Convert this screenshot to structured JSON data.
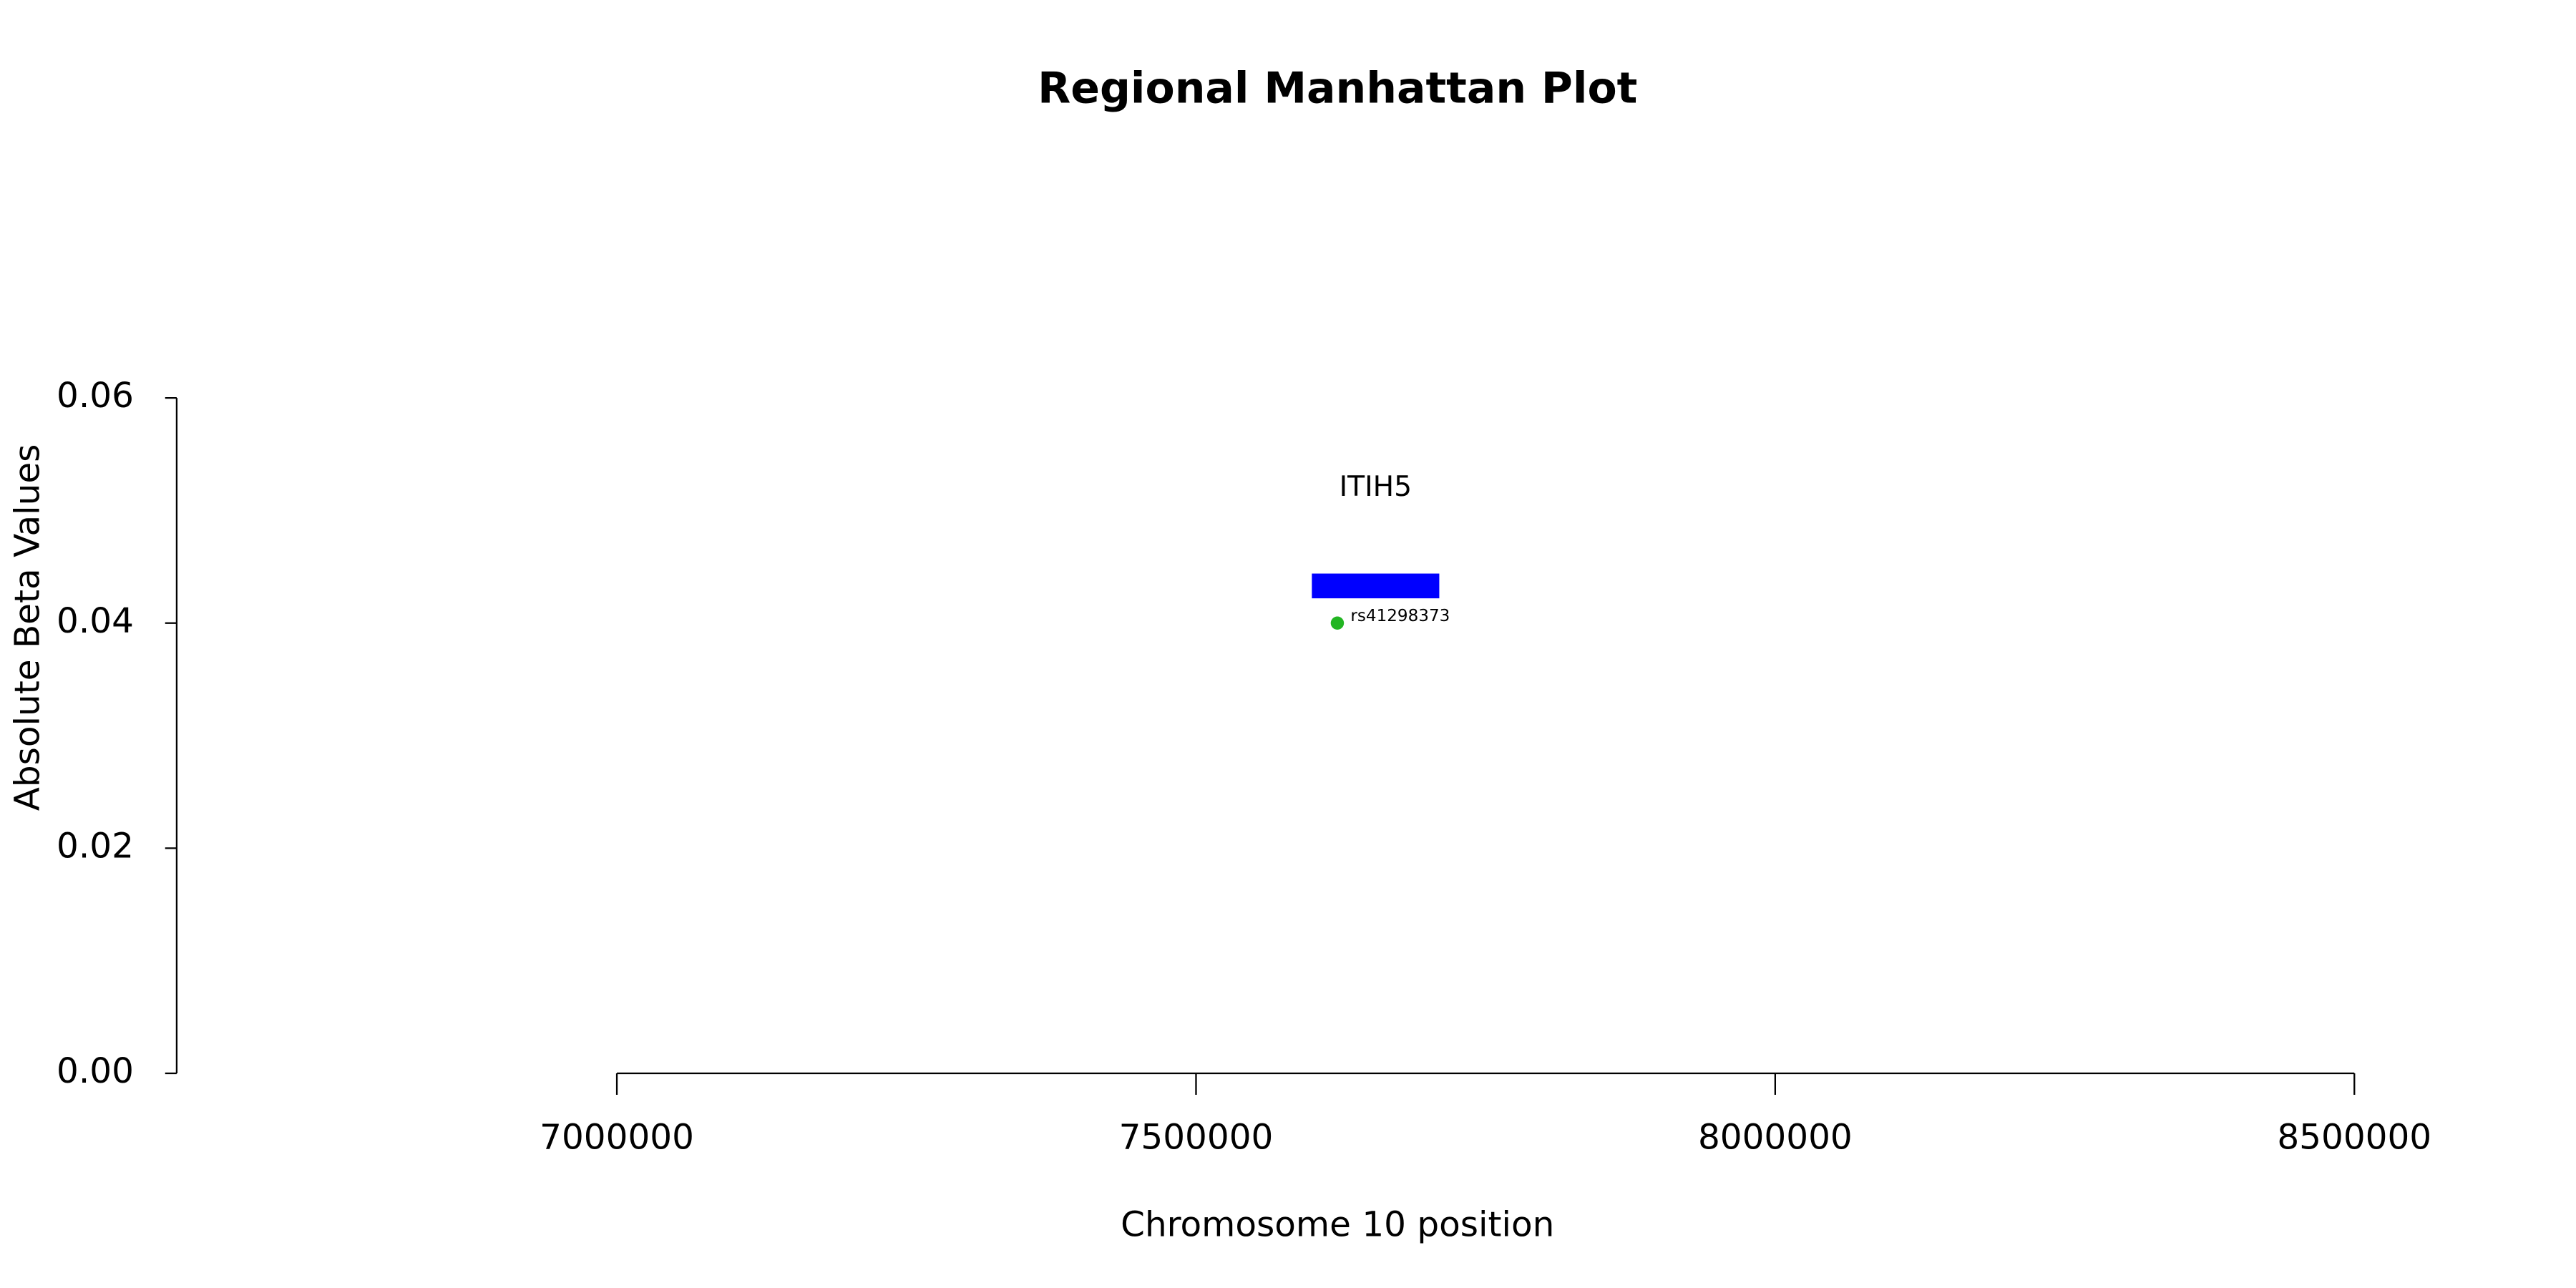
{
  "chart_data": {
    "type": "scatter",
    "title": "Regional Manhattan Plot",
    "xlabel": "Chromosome 10 position",
    "ylabel": "Absolute Beta Values",
    "xlim": [
      6620000,
      8650000
    ],
    "ylim": [
      0,
      0.06
    ],
    "xticks": [
      7000000,
      7500000,
      8000000,
      8500000
    ],
    "yticks": [
      {
        "value": 0,
        "label": "0.00"
      },
      0.02,
      0.04,
      0.06
    ],
    "points": [
      {
        "label": "rs41298373",
        "x": 7622000,
        "y": 0.04,
        "color": "#22b522"
      }
    ],
    "genes": [
      {
        "name": "ITIH5",
        "start": 7600000,
        "end": 7710000,
        "y": 0.0433,
        "color": "#0000ff"
      }
    ]
  }
}
